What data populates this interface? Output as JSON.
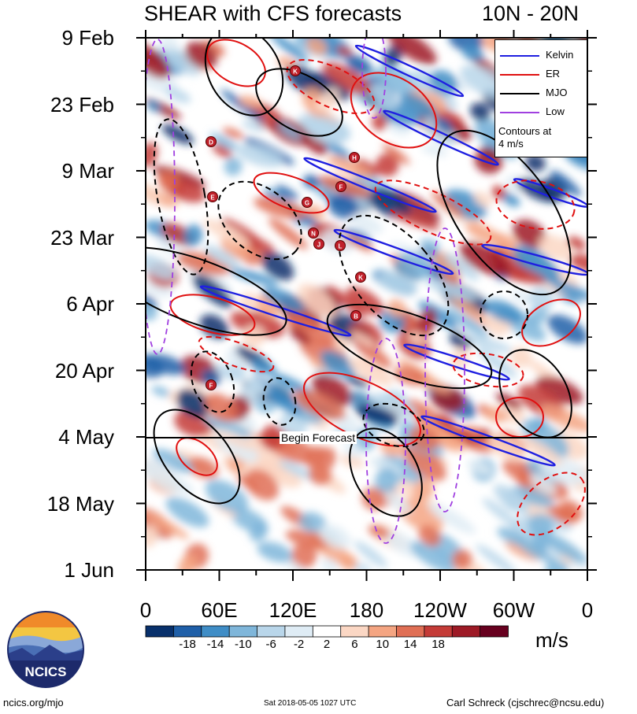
{
  "header": {
    "title": "SHEAR with CFS forecasts",
    "latitude_band": "10N - 20N"
  },
  "chart_data": {
    "type": "heatmap",
    "title": "SHEAR with CFS forecasts",
    "subtitle": "10N - 20N",
    "x_ticks": [
      "0",
      "60E",
      "120E",
      "180",
      "120W",
      "60W",
      "0"
    ],
    "y_ticks": [
      "9 Feb",
      "23 Feb",
      "9 Mar",
      "23 Mar",
      "6 Apr",
      "20 Apr",
      "4 May",
      "18 May",
      "1 Jun"
    ],
    "colorbar": {
      "ticks": [
        "-18",
        "-14",
        "-10",
        "-6",
        "-2",
        "2",
        "6",
        "10",
        "14",
        "18"
      ],
      "colors": [
        "#08306b",
        "#1f5fa8",
        "#3f8dc6",
        "#7fb6da",
        "#b9d6ea",
        "#dfecf5",
        "#ffffff",
        "#fbd7c4",
        "#f4a582",
        "#e06f55",
        "#c43b37",
        "#9d1a26",
        "#67001f"
      ],
      "units": "m/s"
    },
    "legend": {
      "placement": "top-right",
      "entries": [
        {
          "label": "Kelvin",
          "color": "#1f1fe0"
        },
        {
          "label": "ER",
          "color": "#e01010"
        },
        {
          "label": "MJO",
          "color": "#000000"
        },
        {
          "label": "Low",
          "color": "#a040e0"
        }
      ],
      "note_line1": "Contours at",
      "note_line2": "4 m/s"
    },
    "annotations": {
      "forecast_start_label": "Begin Forecast",
      "forecast_start_date": "4 May"
    },
    "storm_markers": [
      "K",
      "D",
      "H",
      "E",
      "G",
      "F",
      "N",
      "J",
      "L",
      "K",
      "B",
      "F"
    ]
  },
  "footer": {
    "site": "ncics.org/mjo",
    "timestamp": "Sat 2018-05-05 1027 UTC",
    "author": "Carl Schreck (cjschrec@ncsu.edu)",
    "logo_text": "NCICS"
  }
}
